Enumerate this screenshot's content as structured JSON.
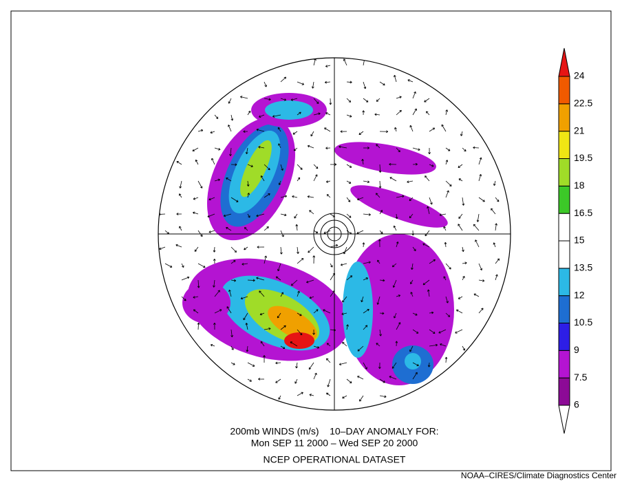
{
  "title_lines": [
    "200mb WINDS (m/s)    10–DAY ANOMALY FOR:",
    "Mon SEP 11 2000 – Wed SEP 20 2000"
  ],
  "dataset": "NCEP OPERATIONAL DATASET",
  "credit": "NOAA–CIRES/Climate Diagnostics Center",
  "colorbar": {
    "levels": [
      6,
      7.5,
      9,
      10.5,
      12,
      13.5,
      15,
      16.5,
      18,
      19.5,
      21,
      22.5,
      24
    ],
    "colors": [
      "#ffffff",
      "#8c0a96",
      "#b414d2",
      "#2d1ee6",
      "#1e6ed2",
      "#2cb9e6",
      "#ffffff",
      "#ffffff",
      "#3cc828",
      "#a0dc28",
      "#f0e614",
      "#f0a000",
      "#f05a00",
      "#e61414"
    ]
  }
}
